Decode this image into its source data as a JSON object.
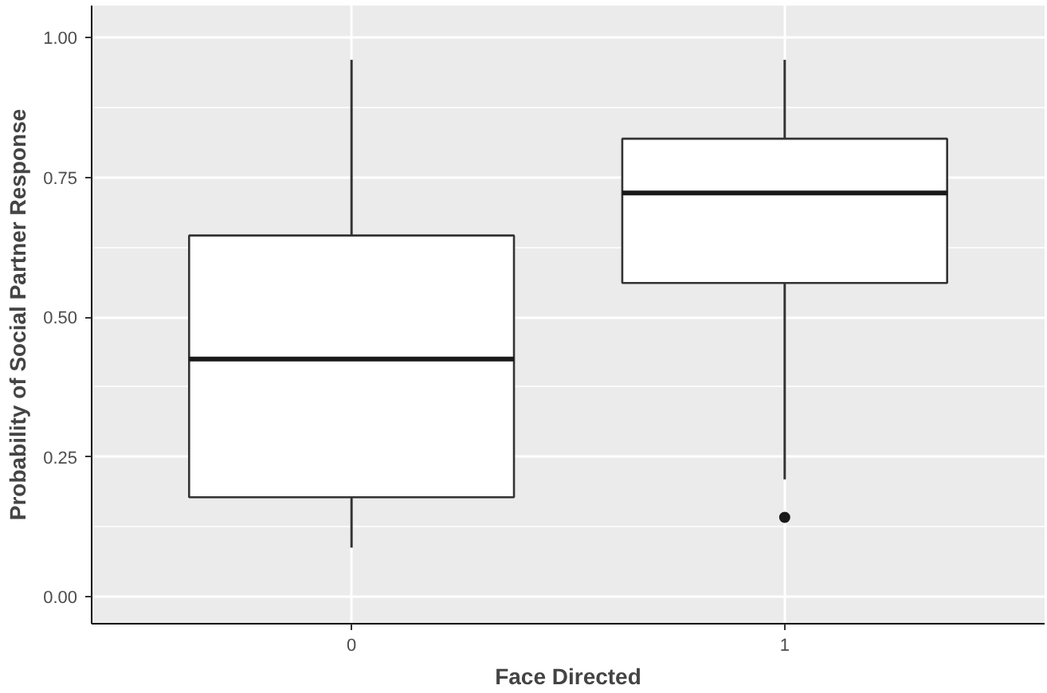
{
  "chart_data": {
    "type": "box",
    "xlabel": "Face Directed",
    "ylabel": "Probability of Social Partner Response",
    "categories": [
      "0",
      "1"
    ],
    "boxes": [
      {
        "low": 0.088,
        "q1": 0.178,
        "median": 0.425,
        "q3": 0.646,
        "high": 0.96
      },
      {
        "low": 0.21,
        "q1": 0.561,
        "median": 0.722,
        "q3": 0.819,
        "high": 0.96,
        "outliers": [
          0.142
        ]
      }
    ],
    "ylim": [
      -0.048,
      1.057
    ],
    "yticks": [
      {
        "value": 0,
        "label": "0.00"
      },
      {
        "value": 0.25,
        "label": "0.25"
      },
      {
        "value": 0.5,
        "label": "0.50"
      },
      {
        "value": 0.75,
        "label": "0.75"
      },
      {
        "value": 1,
        "label": "1.00"
      }
    ],
    "grid": true
  }
}
